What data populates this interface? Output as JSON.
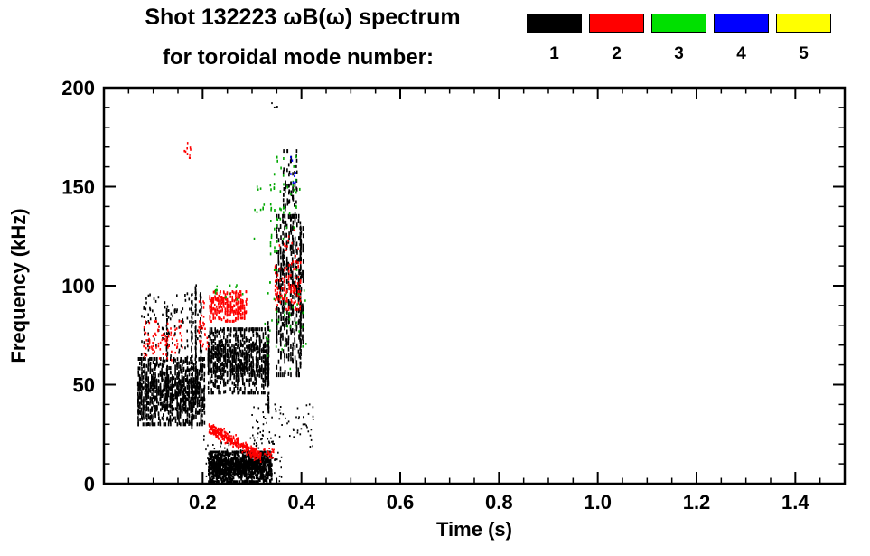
{
  "title": {
    "line1": "Shot 132223 ωB(ω) spectrum",
    "line2": "for toroidal mode number:"
  },
  "legend": {
    "modes": [
      {
        "label": "1",
        "color": "#000000"
      },
      {
        "label": "2",
        "color": "#ff0000"
      },
      {
        "label": "3",
        "color": "#00e000"
      },
      {
        "label": "4",
        "color": "#0000ff"
      },
      {
        "label": "5",
        "color": "#ffff00"
      }
    ]
  },
  "chart_data": {
    "type": "scatter",
    "title": "Shot 132223 ωB(ω) spectrum for toroidal mode number 1-5",
    "xlabel": "Time (s)",
    "ylabel": "Frequency (kHz)",
    "xlim": [
      0.0,
      1.5
    ],
    "ylim": [
      0,
      200
    ],
    "xtick_values": [
      0.2,
      0.4,
      0.6,
      0.8,
      1.0,
      1.2,
      1.4
    ],
    "xtick_labels": [
      "0.2",
      "0.4",
      "0.6",
      "0.8",
      "1.0",
      "1.2",
      "1.4"
    ],
    "ytick_values": [
      0,
      50,
      100,
      150,
      200
    ],
    "ytick_labels": [
      "0",
      "50",
      "100",
      "150",
      "200"
    ],
    "x_minor_step": 0.05,
    "y_minor_step": 10,
    "grid": false,
    "legend_position": "top",
    "series": [
      {
        "name": "n=1",
        "mode": 1,
        "color": "#000000"
      },
      {
        "name": "n=2",
        "mode": 2,
        "color": "#ff0000"
      },
      {
        "name": "n=3",
        "mode": 3,
        "color": "#00a800"
      },
      {
        "name": "n=4",
        "mode": 4,
        "color": "#0000ff"
      },
      {
        "name": "n=5",
        "mode": 5,
        "color": "#ffff00"
      }
    ],
    "features": [
      {
        "mode": 1,
        "shape": "cloud",
        "t": [
          0.068,
          0.205
        ],
        "f": [
          30,
          63
        ],
        "n": 1000,
        "streaky": 40,
        "pw": 1.6,
        "ph": 4
      },
      {
        "mode": 1,
        "shape": "cloud",
        "t": [
          0.075,
          0.2
        ],
        "f": [
          62,
          96
        ],
        "n": 110,
        "streaky": 30,
        "ph": 3
      },
      {
        "mode": 1,
        "shape": "vline",
        "t": [
          0.128,
          0.128
        ],
        "f": [
          38,
          90
        ],
        "n": 70
      },
      {
        "mode": 1,
        "shape": "vline",
        "t": [
          0.178,
          0.178
        ],
        "f": [
          28,
          96
        ],
        "n": 90
      },
      {
        "mode": 1,
        "shape": "vline",
        "t": [
          0.186,
          0.186
        ],
        "f": [
          40,
          105
        ],
        "n": 80
      },
      {
        "mode": 1,
        "shape": "vline",
        "t": [
          0.196,
          0.196
        ],
        "f": [
          45,
          98
        ],
        "n": 60
      },
      {
        "mode": 1,
        "shape": "cloud",
        "t": [
          0.21,
          0.335
        ],
        "f": [
          46,
          78
        ],
        "n": 800,
        "streaky": 36,
        "ph": 4
      },
      {
        "mode": 1,
        "shape": "vline",
        "t": [
          0.333,
          0.333
        ],
        "f": [
          35,
          82
        ],
        "n": 90
      },
      {
        "mode": 1,
        "shape": "cloud",
        "t": [
          0.212,
          0.34
        ],
        "f": [
          1,
          16
        ],
        "n": 1000,
        "pw": 2,
        "ph": 3
      },
      {
        "mode": 1,
        "shape": "cloud",
        "t": [
          0.2,
          0.36
        ],
        "f": [
          0,
          26
        ],
        "n": 140,
        "pw": 1.5,
        "ph": 2
      },
      {
        "mode": 1,
        "shape": "cloud",
        "t": [
          0.3,
          0.425
        ],
        "f": [
          18,
          40
        ],
        "n": 70,
        "ph": 2
      },
      {
        "mode": 1,
        "shape": "cloud",
        "t": [
          0.348,
          0.405
        ],
        "f": [
          55,
          135
        ],
        "n": 420,
        "streaky": 14,
        "ph": 5
      },
      {
        "mode": 1,
        "shape": "vline",
        "t": [
          0.398,
          0.398
        ],
        "f": [
          58,
          132
        ],
        "n": 110
      },
      {
        "mode": 1,
        "shape": "cloud",
        "t": [
          0.362,
          0.392
        ],
        "f": [
          132,
          168
        ],
        "n": 70,
        "streaky": 8,
        "ph": 4
      },
      {
        "mode": 1,
        "shape": "cloud",
        "t": [
          0.34,
          0.352
        ],
        "f": [
          188,
          196
        ],
        "n": 4,
        "ph": 2
      },
      {
        "mode": 2,
        "shape": "cloud",
        "t": [
          0.08,
          0.16
        ],
        "f": [
          62,
          82
        ],
        "n": 90,
        "ph": 2.5
      },
      {
        "mode": 2,
        "shape": "cloud",
        "t": [
          0.163,
          0.176
        ],
        "f": [
          163,
          172
        ],
        "n": 10,
        "ph": 2.5
      },
      {
        "mode": 2,
        "shape": "cloud",
        "t": [
          0.213,
          0.29
        ],
        "f": [
          82,
          97
        ],
        "n": 260,
        "streaky": 22,
        "ph": 3
      },
      {
        "mode": 2,
        "shape": "curve",
        "t": [
          0.213,
          0.318
        ],
        "f": [
          28,
          14
        ],
        "thick": 4,
        "n": 300,
        "ph": 2.5
      },
      {
        "mode": 2,
        "shape": "cloud",
        "t": [
          0.295,
          0.345
        ],
        "f": [
          13,
          18
        ],
        "n": 50,
        "ph": 2
      },
      {
        "mode": 2,
        "shape": "cloud",
        "t": [
          0.345,
          0.4
        ],
        "f": [
          88,
          112
        ],
        "n": 110,
        "streaky": 12,
        "ph": 3
      },
      {
        "mode": 2,
        "shape": "cloud",
        "t": [
          0.35,
          0.395
        ],
        "f": [
          115,
          128
        ],
        "n": 12,
        "ph": 2.5
      },
      {
        "mode": 2,
        "shape": "cloud",
        "t": [
          0.19,
          0.212
        ],
        "f": [
          68,
          92
        ],
        "n": 30,
        "ph": 2.5
      },
      {
        "mode": 3,
        "shape": "cloud",
        "t": [
          0.225,
          0.285
        ],
        "f": [
          93,
          103
        ],
        "n": 15,
        "ph": 2.5
      },
      {
        "mode": 3,
        "shape": "cloud",
        "t": [
          0.325,
          0.41
        ],
        "f": [
          58,
          108
        ],
        "n": 45,
        "ph": 2.5
      },
      {
        "mode": 3,
        "shape": "cloud",
        "t": [
          0.335,
          0.4
        ],
        "f": [
          108,
          165
        ],
        "n": 55,
        "streaky": 10,
        "ph": 3
      },
      {
        "mode": 3,
        "shape": "cloud",
        "t": [
          0.3,
          0.325
        ],
        "f": [
          120,
          150
        ],
        "n": 10,
        "ph": 2.5
      },
      {
        "mode": 4,
        "shape": "cloud",
        "t": [
          0.376,
          0.39
        ],
        "f": [
          150,
          166
        ],
        "n": 8,
        "ph": 2.5
      }
    ]
  }
}
